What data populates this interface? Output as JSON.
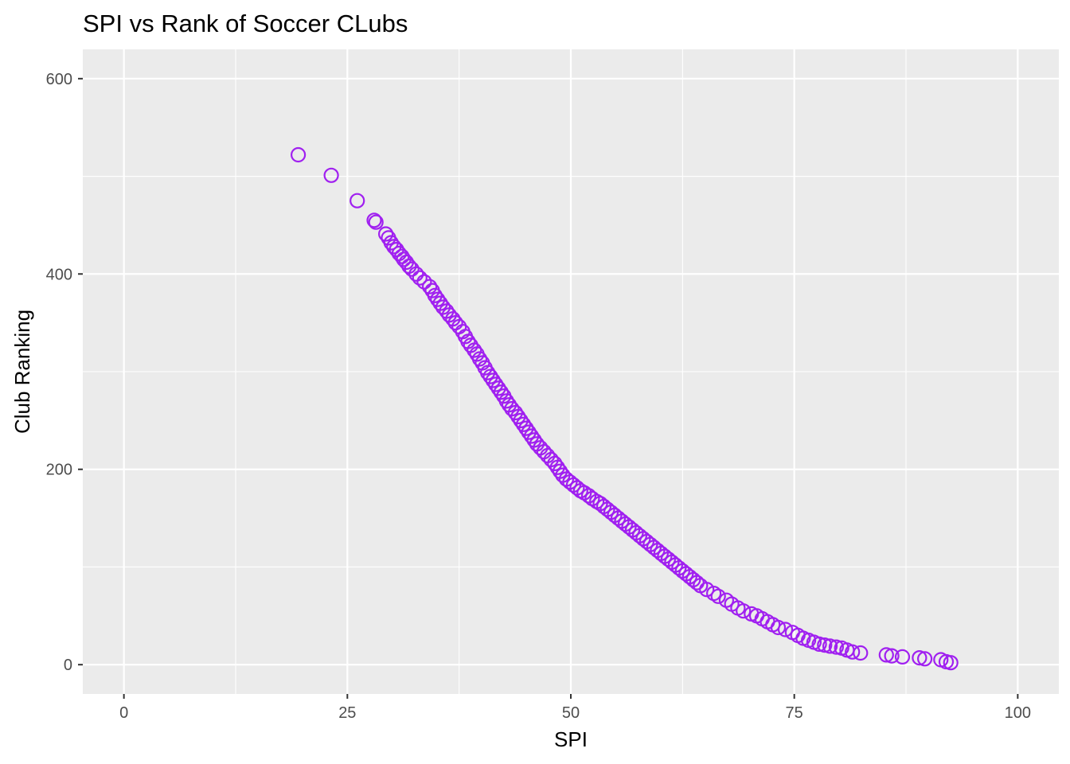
{
  "chart_data": {
    "type": "scatter",
    "title": "SPI vs Rank of Soccer CLubs",
    "xlabel": "SPI",
    "ylabel": "Club Ranking",
    "xlim": [
      -4.6,
      104.6
    ],
    "ylim": [
      -30,
      630
    ],
    "x_ticks": [
      0,
      25,
      50,
      75,
      100
    ],
    "y_ticks": [
      0,
      200,
      400,
      600
    ],
    "x_tick_labels": [
      "0",
      "25",
      "50",
      "75",
      "100"
    ],
    "y_tick_labels": [
      "0",
      "200",
      "400",
      "600"
    ],
    "grid": true,
    "panel_background": "#ebebeb",
    "grid_color": "#ffffff",
    "point_color": "#a020f0",
    "point_shape": "open-circle",
    "points": [
      [
        19.5,
        522
      ],
      [
        23.2,
        501
      ],
      [
        26.1,
        475
      ],
      [
        28.0,
        455
      ],
      [
        28.2,
        453
      ],
      [
        29.3,
        441
      ],
      [
        29.6,
        437
      ],
      [
        29.9,
        432
      ],
      [
        30.2,
        428
      ],
      [
        30.5,
        425
      ],
      [
        30.8,
        421
      ],
      [
        31.1,
        418
      ],
      [
        31.3,
        415
      ],
      [
        31.6,
        412
      ],
      [
        31.9,
        408
      ],
      [
        32.2,
        405
      ],
      [
        32.7,
        400
      ],
      [
        33.1,
        396
      ],
      [
        33.6,
        392
      ],
      [
        34.2,
        387
      ],
      [
        34.5,
        383
      ],
      [
        34.8,
        378
      ],
      [
        35.1,
        374
      ],
      [
        35.4,
        370
      ],
      [
        35.7,
        366
      ],
      [
        36.1,
        362
      ],
      [
        36.4,
        358
      ],
      [
        36.8,
        354
      ],
      [
        37.1,
        350
      ],
      [
        37.5,
        346
      ],
      [
        37.9,
        341
      ],
      [
        38.2,
        336
      ],
      [
        38.5,
        331
      ],
      [
        38.8,
        327
      ],
      [
        39.2,
        322
      ],
      [
        39.5,
        318
      ],
      [
        39.8,
        313
      ],
      [
        40.1,
        309
      ],
      [
        40.4,
        304
      ],
      [
        40.7,
        299
      ],
      [
        41.0,
        295
      ],
      [
        41.3,
        291
      ],
      [
        41.6,
        287
      ],
      [
        41.9,
        283
      ],
      [
        42.2,
        279
      ],
      [
        42.5,
        275
      ],
      [
        42.8,
        270
      ],
      [
        43.1,
        266
      ],
      [
        43.4,
        262
      ],
      [
        43.8,
        258
      ],
      [
        44.1,
        254
      ],
      [
        44.4,
        250
      ],
      [
        44.7,
        246
      ],
      [
        45.0,
        242
      ],
      [
        45.3,
        238
      ],
      [
        45.6,
        234
      ],
      [
        45.9,
        230
      ],
      [
        46.2,
        226
      ],
      [
        46.6,
        222
      ],
      [
        47.0,
        218
      ],
      [
        47.4,
        214
      ],
      [
        47.8,
        210
      ],
      [
        48.2,
        206
      ],
      [
        48.5,
        202
      ],
      [
        48.8,
        198
      ],
      [
        49.1,
        194
      ],
      [
        49.5,
        190
      ],
      [
        49.9,
        187
      ],
      [
        50.3,
        184
      ],
      [
        50.7,
        181
      ],
      [
        51.1,
        178
      ],
      [
        51.5,
        176
      ],
      [
        52.0,
        173
      ],
      [
        52.4,
        170
      ],
      [
        52.9,
        167
      ],
      [
        53.3,
        165
      ],
      [
        53.7,
        162
      ],
      [
        54.1,
        159
      ],
      [
        54.5,
        156
      ],
      [
        54.9,
        153
      ],
      [
        55.3,
        150
      ],
      [
        55.7,
        147
      ],
      [
        56.1,
        144
      ],
      [
        56.5,
        141
      ],
      [
        56.9,
        138
      ],
      [
        57.3,
        135
      ],
      [
        57.7,
        132
      ],
      [
        58.1,
        129
      ],
      [
        58.5,
        126
      ],
      [
        58.9,
        123
      ],
      [
        59.3,
        120
      ],
      [
        59.7,
        117
      ],
      [
        60.1,
        114
      ],
      [
        60.5,
        111
      ],
      [
        60.9,
        108
      ],
      [
        61.3,
        105
      ],
      [
        61.7,
        102
      ],
      [
        62.1,
        99
      ],
      [
        62.5,
        96
      ],
      [
        62.9,
        93
      ],
      [
        63.3,
        90
      ],
      [
        63.7,
        87
      ],
      [
        64.1,
        84
      ],
      [
        64.5,
        81
      ],
      [
        65.2,
        77
      ],
      [
        66.0,
        73
      ],
      [
        66.5,
        70
      ],
      [
        67.4,
        66
      ],
      [
        68.0,
        62
      ],
      [
        68.7,
        58
      ],
      [
        69.3,
        55
      ],
      [
        70.2,
        52
      ],
      [
        70.8,
        50
      ],
      [
        71.4,
        47
      ],
      [
        72.0,
        44
      ],
      [
        72.6,
        41
      ],
      [
        73.2,
        38
      ],
      [
        74.0,
        36
      ],
      [
        74.8,
        33
      ],
      [
        75.4,
        30
      ],
      [
        76.0,
        27
      ],
      [
        76.6,
        25
      ],
      [
        77.2,
        23
      ],
      [
        77.8,
        21
      ],
      [
        78.4,
        20
      ],
      [
        79.0,
        19
      ],
      [
        79.7,
        18
      ],
      [
        80.3,
        17
      ],
      [
        80.9,
        15
      ],
      [
        81.5,
        13
      ],
      [
        82.4,
        12
      ],
      [
        85.3,
        10
      ],
      [
        85.9,
        9
      ],
      [
        87.1,
        8
      ],
      [
        89.0,
        7
      ],
      [
        89.6,
        6
      ],
      [
        91.4,
        5
      ],
      [
        92.0,
        3
      ],
      [
        92.5,
        2
      ]
    ]
  }
}
